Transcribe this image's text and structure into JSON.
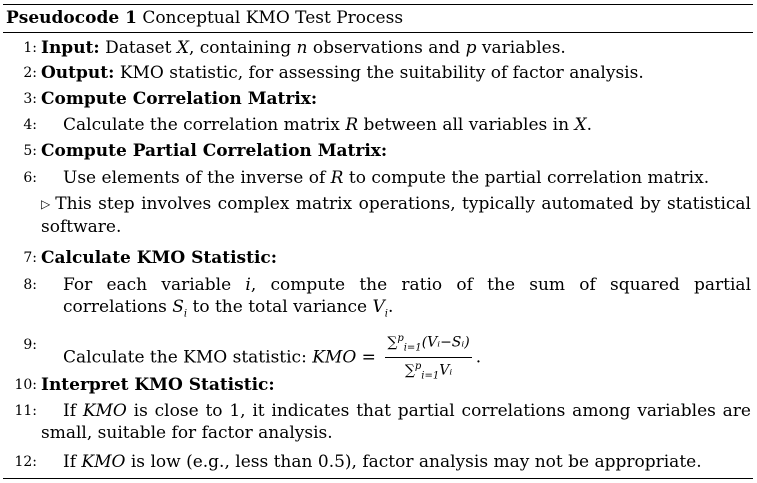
{
  "caption": {
    "label": "Pseudocode 1",
    "title": "Conceptual KMO Test Process"
  },
  "lines": [
    {
      "num": "1:",
      "keyword": "Input:",
      "text_a": "Dataset ",
      "X": "X",
      "text_b": ", containing ",
      "n": "n",
      "text_c": " observations and ",
      "p": "p",
      "text_d": " variables."
    },
    {
      "num": "2:",
      "keyword": "Output:",
      "text": "KMO statistic, for assessing the suitability of factor analysis."
    },
    {
      "num": "3:",
      "keyword": "Compute Correlation Matrix:"
    },
    {
      "num": "4:",
      "text_a": "Calculate the correlation matrix ",
      "R": "R",
      "text_b": " between all variables in ",
      "X": "X",
      "text_c": "."
    },
    {
      "num": "5:",
      "keyword": "Compute Partial Correlation Matrix:"
    },
    {
      "num": "6:",
      "text_a": "Use elements of the inverse of ",
      "R": "R",
      "text_b": " to compute the partial correlation matrix."
    },
    {
      "comment": "This step involves complex matrix operations, typically automated by statistical software."
    },
    {
      "num": "7:",
      "keyword": "Calculate KMO Statistic:"
    },
    {
      "num": "8:",
      "text_a": "For each variable ",
      "i": "i",
      "text_b": ", compute the ratio of the sum of squared partial correlations ",
      "Si": "S",
      "text_c": " to the total variance ",
      "Vi": "V",
      "text_d": "."
    },
    {
      "num": "9:",
      "text": "Calculate the KMO statistic: ",
      "lhs": "KMO",
      "numerator": "(Vᵢ−Sᵢ)",
      "denominator": "Vᵢ",
      "sum_from": "i=1",
      "sum_to": "p"
    },
    {
      "num": "10:",
      "keyword": "Interpret KMO Statistic:"
    },
    {
      "num": "11:",
      "text_a": "If ",
      "kmo": "KMO",
      "text_b": " is close to 1, it indicates that partial correlations among variables are small, suitable for factor analysis."
    },
    {
      "num": "12:",
      "text_a": "If ",
      "kmo": "KMO",
      "text_b": " is low (e.g., less than 0.5), factor analysis may not be appropriate."
    }
  ]
}
